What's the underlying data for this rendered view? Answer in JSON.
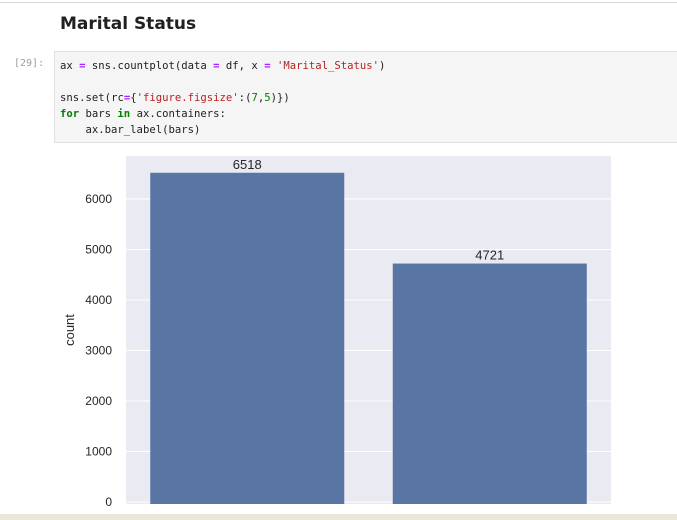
{
  "notebook": {
    "section_heading": "Marital Status",
    "cell": {
      "prompt": "[29]:",
      "code_lines": [
        "ax = sns.countplot(data = df, x = 'Marital_Status')",
        "",
        "sns.set(rc={'figure.figsize':(7,5)})",
        "for bars in ax.containers:",
        "    ax.bar_label(bars)"
      ]
    }
  },
  "chart_data": {
    "type": "bar",
    "categories": [
      "",
      ""
    ],
    "values": [
      6518,
      4721
    ],
    "data_labels": [
      "6518",
      "4721"
    ],
    "title": "",
    "xlabel": "",
    "ylabel": "count",
    "ylim": [
      0,
      6850
    ],
    "yticks": [
      0,
      1000,
      2000,
      3000,
      4000,
      5000,
      6000
    ],
    "grid": true,
    "colors": {
      "bar": "#5875a4",
      "background": "#eaeaf2",
      "grid": "#ffffff"
    }
  }
}
